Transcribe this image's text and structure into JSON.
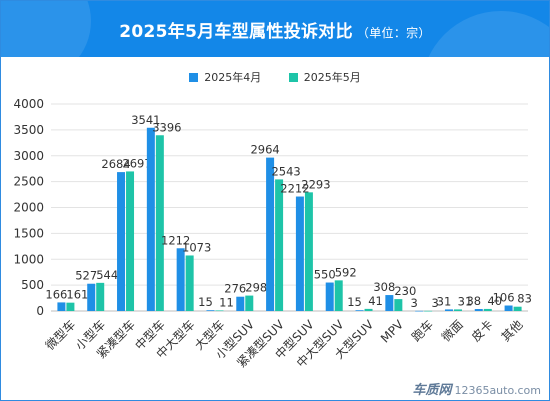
{
  "header": {
    "title": "2025年5月车型属性投诉对比",
    "unit": "（单位：宗）"
  },
  "colors": {
    "banner": "#1387e8",
    "series_april": "#1f8fe6",
    "series_may": "#1ec4a8",
    "grid": "#e3e3e3",
    "text": "#333333"
  },
  "watermark": {
    "logo": "车质网",
    "url": "12365auto.com"
  },
  "chart_data": {
    "type": "bar",
    "title": "2025年5月车型属性投诉对比",
    "subtitle": "（单位：宗）",
    "categories": [
      "微型车",
      "小型车",
      "紧凑型车",
      "中型车",
      "中大型车",
      "大型车",
      "小型SUV",
      "紧凑型SUV",
      "中型SUV",
      "中大型SUV",
      "大型SUV",
      "MPV",
      "跑车",
      "微面",
      "皮卡",
      "其他"
    ],
    "series": [
      {
        "name": "2025年4月",
        "values": [
          166,
          527,
          2684,
          3541,
          1212,
          15,
          276,
          2964,
          2212,
          550,
          15,
          308,
          3,
          31,
          38,
          106
        ]
      },
      {
        "name": "2025年5月",
        "values": [
          161,
          544,
          2697,
          3396,
          1073,
          11,
          298,
          2543,
          2293,
          592,
          41,
          230,
          3,
          31,
          40,
          83
        ]
      }
    ],
    "y_ticks": [
      "0",
      "500",
      "1000",
      "1500",
      "2000",
      "2500",
      "3000",
      "3500",
      "4000"
    ],
    "ylim": [
      0,
      4000
    ],
    "grid": true,
    "legend_position": "top-center",
    "data_labels": true
  }
}
